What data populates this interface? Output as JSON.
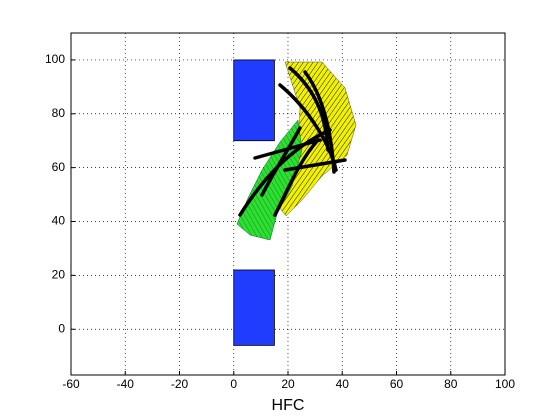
{
  "chart_data": {
    "type": "rectangles",
    "x_label": "HFC",
    "xlim": [
      -60,
      100
    ],
    "ylim": [
      -17,
      110
    ],
    "xticks": [
      -60,
      -40,
      -20,
      0,
      20,
      40,
      60,
      80,
      100
    ],
    "yticks": [
      0,
      20,
      40,
      60,
      80,
      100
    ],
    "grid": true,
    "rectangles": [
      {
        "x": [
          0,
          15
        ],
        "y": [
          70,
          100
        ],
        "color": "#1f3cff"
      },
      {
        "x": [
          0,
          15
        ],
        "y": [
          -6,
          22
        ],
        "color": "#1f3cff"
      }
    ]
  }
}
